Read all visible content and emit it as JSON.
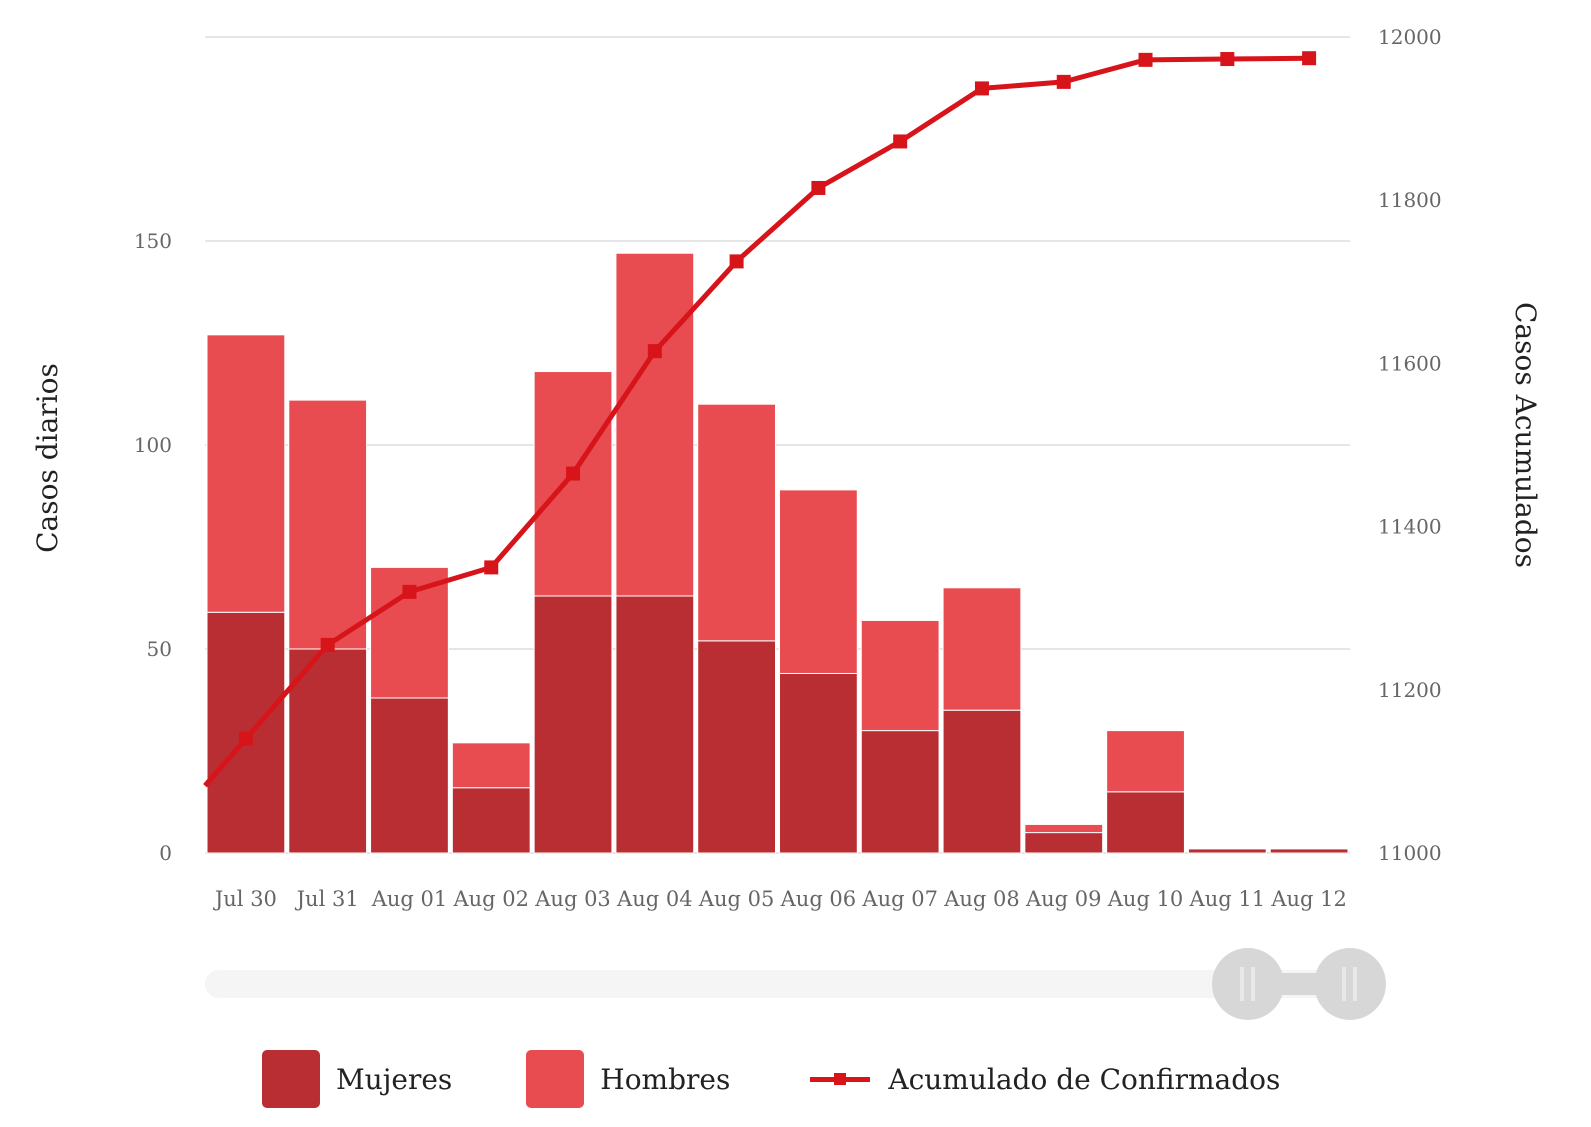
{
  "chart_data": {
    "type": "bar",
    "stacked": true,
    "categories": [
      "Jul 30",
      "Jul 31",
      "Aug 01",
      "Aug 02",
      "Aug 03",
      "Aug 04",
      "Aug 05",
      "Aug 06",
      "Aug 07",
      "Aug 08",
      "Aug 09",
      "Aug 10",
      "Aug 11",
      "Aug 12"
    ],
    "series": [
      {
        "name": "Mujeres",
        "type": "bar",
        "axis": "left",
        "color": "#b92e32",
        "values": [
          59,
          50,
          38,
          16,
          63,
          63,
          52,
          44,
          30,
          35,
          5,
          15,
          1,
          1
        ]
      },
      {
        "name": "Hombres",
        "type": "bar",
        "axis": "left",
        "color": "#e84c50",
        "values": [
          68,
          61,
          32,
          11,
          55,
          84,
          58,
          45,
          27,
          30,
          2,
          15,
          0,
          0
        ]
      },
      {
        "name": "Acumulado de Confirmados",
        "type": "line",
        "axis": "right",
        "color": "#d7141a",
        "values": [
          11140,
          11255,
          11320,
          11350,
          11465,
          11615,
          11725,
          11815,
          11872,
          11937,
          11945,
          11972,
          11973,
          11974
        ]
      }
    ],
    "y_left": {
      "label": "Casos diarios",
      "ticks": [
        0,
        50,
        100,
        150
      ],
      "range": [
        0,
        200
      ]
    },
    "y_right": {
      "label": "Casos Acumulados",
      "ticks": [
        11000,
        11200,
        11400,
        11600,
        11800,
        12000
      ],
      "range": [
        11000,
        12000
      ]
    },
    "grid": true,
    "legend_position": "bottom",
    "navigator": true
  },
  "legend": {
    "mujeres": "Mujeres",
    "hombres": "Hombres",
    "acumulado": "Acumulado de Confirmados"
  }
}
